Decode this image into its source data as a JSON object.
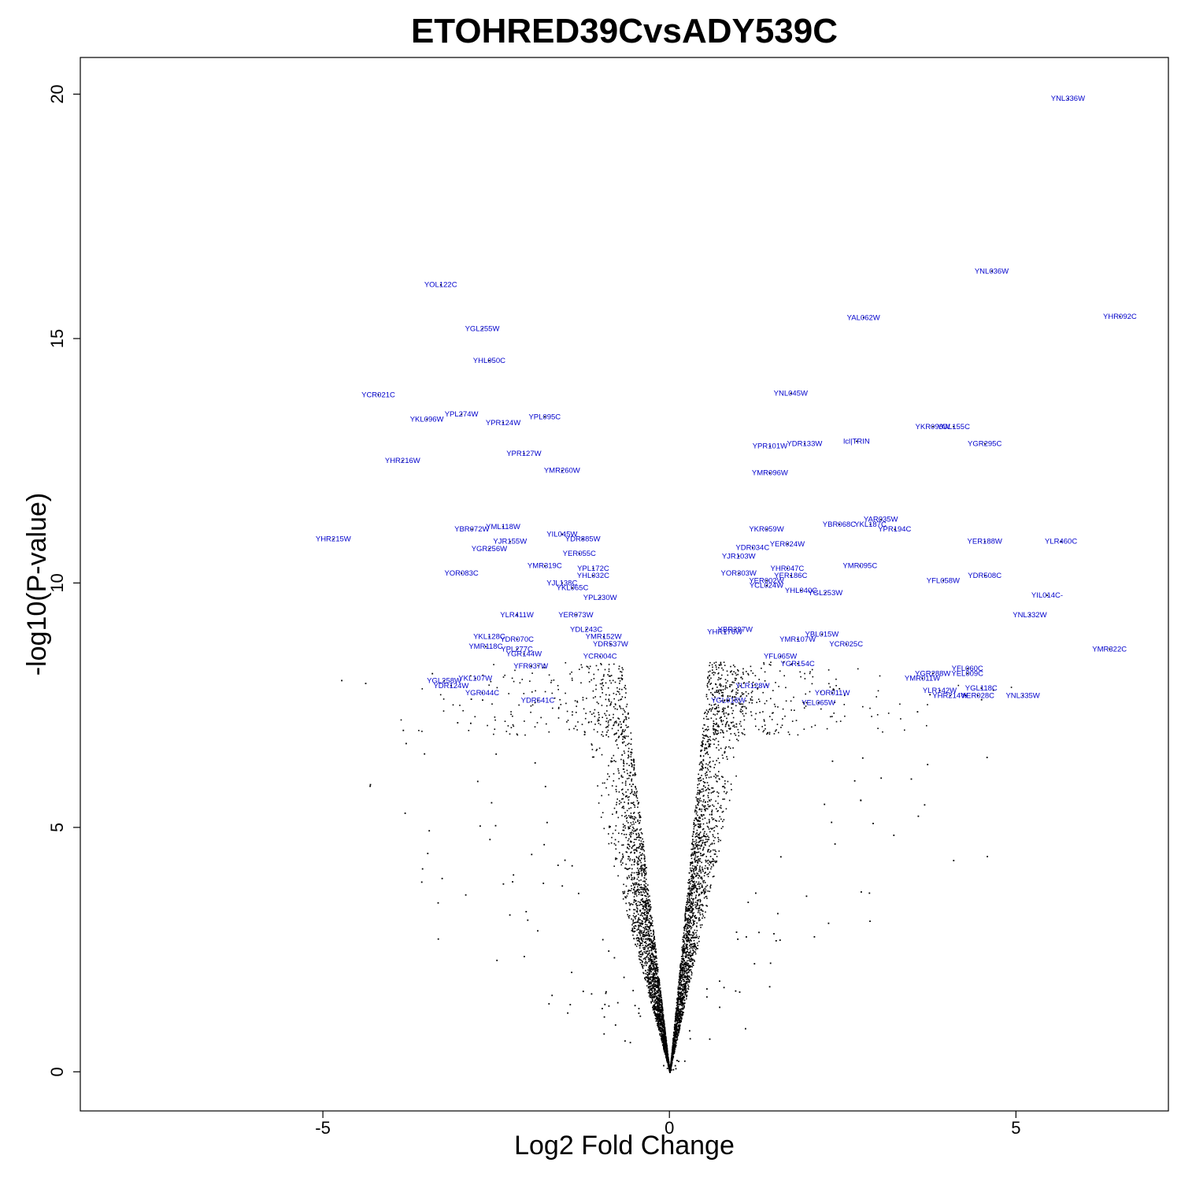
{
  "chart_data": {
    "type": "scatter",
    "title": "ETOHRED39CvsADY539C",
    "xlabel": "Log2 Fold Change",
    "ylabel": "-log10(P-value)",
    "xlim": [
      -8.5,
      7.2
    ],
    "ylim": [
      -0.8,
      20.75
    ],
    "x_ticks": [
      -5,
      0,
      5
    ],
    "y_ticks": [
      0,
      5,
      10,
      15,
      20
    ],
    "grid": false,
    "legend": "none",
    "point_color": "#000000",
    "label_color": "#0000cc",
    "labeled_genes": [
      {
        "name": "YNL336W",
        "x": 5.75,
        "y": 19.91
      },
      {
        "name": "YNL036W",
        "x": 4.65,
        "y": 16.38
      },
      {
        "name": "YHR092C",
        "x": 6.5,
        "y": 15.45
      },
      {
        "name": "YAL062W",
        "x": 2.8,
        "y": 15.43
      },
      {
        "name": "YOL122C",
        "x": -3.3,
        "y": 16.1
      },
      {
        "name": "YGL255W",
        "x": -2.7,
        "y": 15.2
      },
      {
        "name": "YHL050C",
        "x": -2.6,
        "y": 14.55
      },
      {
        "name": "YCR021C",
        "x": -4.2,
        "y": 13.85
      },
      {
        "name": "YNL045W",
        "x": 1.75,
        "y": 13.88
      },
      {
        "name": "YKL096W",
        "x": -3.5,
        "y": 13.35
      },
      {
        "name": "YPL274W",
        "x": -3.0,
        "y": 13.45
      },
      {
        "name": "YPR124W",
        "x": -2.4,
        "y": 13.28
      },
      {
        "name": "YPL095C",
        "x": -1.8,
        "y": 13.4
      },
      {
        "name": "YKR093W",
        "x": 3.8,
        "y": 13.2
      },
      {
        "name": "YOL155C",
        "x": 4.1,
        "y": 13.2
      },
      {
        "name": "YGR295C",
        "x": 4.55,
        "y": 12.85
      },
      {
        "name": "lcl|TRIN",
        "x": 2.7,
        "y": 12.9
      },
      {
        "name": "YDR133W",
        "x": 1.95,
        "y": 12.85
      },
      {
        "name": "YPR101W",
        "x": 1.45,
        "y": 12.8
      },
      {
        "name": "YHR216W",
        "x": -3.85,
        "y": 12.5
      },
      {
        "name": "YPR127W",
        "x": -2.1,
        "y": 12.65
      },
      {
        "name": "YMR260W",
        "x": -1.55,
        "y": 12.3
      },
      {
        "name": "YMR096W",
        "x": 1.45,
        "y": 12.25
      },
      {
        "name": "YML118W",
        "x": -2.4,
        "y": 11.15
      },
      {
        "name": "YBR072W",
        "x": -2.85,
        "y": 11.1
      },
      {
        "name": "YAR035W",
        "x": 3.05,
        "y": 11.3
      },
      {
        "name": "YKL187C",
        "x": 2.9,
        "y": 11.2
      },
      {
        "name": "YBR068C",
        "x": 2.45,
        "y": 11.2
      },
      {
        "name": "YPR194C",
        "x": 3.25,
        "y": 11.1
      },
      {
        "name": "YKR059W",
        "x": 1.4,
        "y": 11.1
      },
      {
        "name": "YIL045W",
        "x": -1.55,
        "y": 11.0
      },
      {
        "name": "YDR885W",
        "x": -1.25,
        "y": 10.9
      },
      {
        "name": "YJR155W",
        "x": -2.3,
        "y": 10.85
      },
      {
        "name": "YGR256W",
        "x": -2.6,
        "y": 10.7
      },
      {
        "name": "YER188W",
        "x": 4.55,
        "y": 10.85
      },
      {
        "name": "YLR460C",
        "x": 5.65,
        "y": 10.85
      },
      {
        "name": "YHR215W",
        "x": -4.85,
        "y": 10.9
      },
      {
        "name": "YER024W",
        "x": 1.7,
        "y": 10.8
      },
      {
        "name": "YDR034C",
        "x": 1.2,
        "y": 10.72
      },
      {
        "name": "YJR103W",
        "x": 1.0,
        "y": 10.55
      },
      {
        "name": "YER055C",
        "x": -1.3,
        "y": 10.6
      },
      {
        "name": "YOR083C",
        "x": -3.0,
        "y": 10.2
      },
      {
        "name": "YMR095C",
        "x": 2.75,
        "y": 10.35
      },
      {
        "name": "YDR508C",
        "x": 4.55,
        "y": 10.15
      },
      {
        "name": "YFL058W",
        "x": 3.95,
        "y": 10.05
      },
      {
        "name": "YHR047C",
        "x": 1.7,
        "y": 10.3
      },
      {
        "name": "YER186C",
        "x": 1.75,
        "y": 10.15
      },
      {
        "name": "YOR303W",
        "x": 1.0,
        "y": 10.2
      },
      {
        "name": "YER002W",
        "x": 1.4,
        "y": 10.05
      },
      {
        "name": "YCL024W",
        "x": 1.4,
        "y": 9.95
      },
      {
        "name": "YIL014C-",
        "x": 5.45,
        "y": 9.75
      },
      {
        "name": "YHL040C",
        "x": 1.9,
        "y": 9.85
      },
      {
        "name": "YGL253W",
        "x": 2.25,
        "y": 9.8
      },
      {
        "name": "YMR319C",
        "x": -1.8,
        "y": 10.35
      },
      {
        "name": "YPL172C",
        "x": -1.1,
        "y": 10.3
      },
      {
        "name": "YHL032C",
        "x": -1.1,
        "y": 10.15
      },
      {
        "name": "YJL138C",
        "x": -1.55,
        "y": 10.0
      },
      {
        "name": "YKL065C",
        "x": -1.4,
        "y": 9.9
      },
      {
        "name": "YPL230W",
        "x": -1.0,
        "y": 9.7
      },
      {
        "name": "YLR411W",
        "x": -2.2,
        "y": 9.35
      },
      {
        "name": "YER073W",
        "x": -1.35,
        "y": 9.35
      },
      {
        "name": "YNL332W",
        "x": 5.2,
        "y": 9.35
      },
      {
        "name": "YDL243C",
        "x": -1.2,
        "y": 9.05
      },
      {
        "name": "YKL128C",
        "x": -2.6,
        "y": 8.9
      },
      {
        "name": "YDR070C",
        "x": -2.2,
        "y": 8.85
      },
      {
        "name": "YMR152W",
        "x": -0.95,
        "y": 8.9
      },
      {
        "name": "YDR537W",
        "x": -0.85,
        "y": 8.75
      },
      {
        "name": "YMR118C",
        "x": -2.65,
        "y": 8.7
      },
      {
        "name": "YPL277C",
        "x": -2.2,
        "y": 8.65
      },
      {
        "name": "YGR144W",
        "x": -2.1,
        "y": 8.55
      },
      {
        "name": "YCR004C",
        "x": -1.0,
        "y": 8.5
      },
      {
        "name": "YMR322C",
        "x": 6.35,
        "y": 8.65
      },
      {
        "name": "YBL015W",
        "x": 2.2,
        "y": 8.95
      },
      {
        "name": "YCR025C",
        "x": 2.55,
        "y": 8.75
      },
      {
        "name": "YMR107W",
        "x": 1.85,
        "y": 8.85
      },
      {
        "name": "YHR176W",
        "x": 0.8,
        "y": 9.0
      },
      {
        "name": "YBR297W",
        "x": 0.95,
        "y": 9.05
      },
      {
        "name": "YGR154C",
        "x": 1.85,
        "y": 8.35
      },
      {
        "name": "YFL065W",
        "x": 1.6,
        "y": 8.5
      },
      {
        "name": "YFR037W",
        "x": -2.0,
        "y": 8.3
      },
      {
        "name": "YLR128W",
        "x": 1.2,
        "y": 7.9
      },
      {
        "name": "YOR011W",
        "x": 2.35,
        "y": 7.75
      },
      {
        "name": "YEL065W",
        "x": 2.15,
        "y": 7.55
      },
      {
        "name": "YGR288W",
        "x": 3.8,
        "y": 8.15
      },
      {
        "name": "YFL060C",
        "x": 4.3,
        "y": 8.25
      },
      {
        "name": "YEL009C",
        "x": 4.3,
        "y": 8.15
      },
      {
        "name": "YMR011W",
        "x": 3.65,
        "y": 8.05
      },
      {
        "name": "YLR142W",
        "x": 3.9,
        "y": 7.8
      },
      {
        "name": "YHR214W",
        "x": 4.05,
        "y": 7.7
      },
      {
        "name": "YER028C",
        "x": 4.45,
        "y": 7.7
      },
      {
        "name": "YGL118C",
        "x": 4.5,
        "y": 7.85
      },
      {
        "name": "YNL335W",
        "x": 5.1,
        "y": 7.7
      },
      {
        "name": "YGL258W",
        "x": -3.25,
        "y": 8.0
      },
      {
        "name": "YKL107W",
        "x": -2.8,
        "y": 8.05
      },
      {
        "name": "YDR124W",
        "x": -3.15,
        "y": 7.9
      },
      {
        "name": "YGR044C",
        "x": -2.7,
        "y": 7.75
      },
      {
        "name": "YDR541C",
        "x": -1.9,
        "y": 7.6
      },
      {
        "name": "YGL016W",
        "x": 0.85,
        "y": 7.6
      }
    ],
    "scatter_description": "Dense volcano-shaped cloud of black points centred at (0,0) with most points within |x|<1.5 and y<8"
  }
}
